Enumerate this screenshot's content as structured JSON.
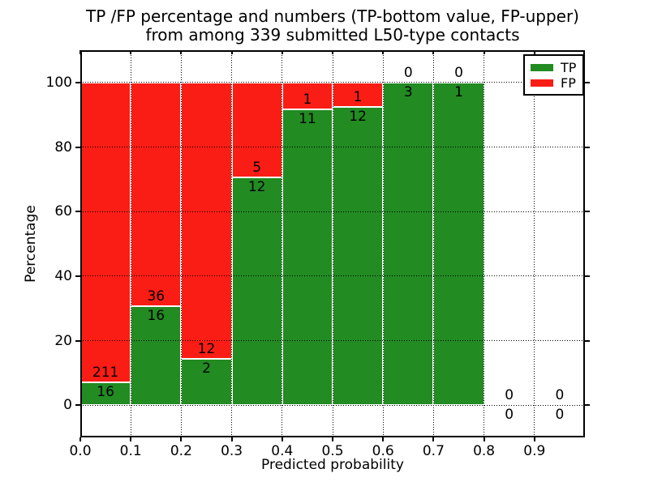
{
  "figure": {
    "title_line1": "TP /FP percentage and numbers (TP-bottom value, FP-upper)",
    "title_line2": "from among 339 submitted L50-type contacts"
  },
  "chart_data": {
    "type": "bar",
    "stacked": true,
    "normalization": "percent of each bin total",
    "title": "TP /FP percentage and numbers (TP-bottom value, FP-upper)\nfrom among 339 submitted L50-type contacts",
    "xlabel": "Predicted probability",
    "ylabel": "Percentage",
    "xlim": [
      0.0,
      1.0
    ],
    "ylim": [
      -10,
      110
    ],
    "xtick_labels": [
      "0.0",
      "0.1",
      "0.2",
      "0.3",
      "0.4",
      "0.5",
      "0.6",
      "0.7",
      "0.8",
      "0.9"
    ],
    "xtick_values": [
      0.0,
      0.1,
      0.2,
      0.3,
      0.4,
      0.5,
      0.6,
      0.7,
      0.8,
      0.9
    ],
    "ytick_values": [
      0,
      20,
      40,
      60,
      80,
      100
    ],
    "grid": {
      "style": "dotted",
      "color": "#000000"
    },
    "bin_edges": [
      0.0,
      0.1,
      0.2,
      0.3,
      0.4,
      0.5,
      0.6,
      0.7,
      0.8,
      0.9,
      1.0
    ],
    "series": [
      {
        "name": "TP",
        "color": "#228b22",
        "values": [
          16,
          16,
          2,
          12,
          11,
          12,
          3,
          1,
          0,
          0
        ]
      },
      {
        "name": "FP",
        "color": "#fa1d15",
        "values": [
          211,
          36,
          12,
          5,
          1,
          1,
          0,
          0,
          0,
          0
        ]
      }
    ],
    "tp_percent_by_bin": [
      7.0,
      30.8,
      14.3,
      70.6,
      91.7,
      92.3,
      100.0,
      100.0,
      null,
      null
    ],
    "bar_edge_color": "#ffffff",
    "legend": {
      "position": "upper right",
      "entries": [
        "TP",
        "FP"
      ]
    },
    "total_contacts": 339
  }
}
